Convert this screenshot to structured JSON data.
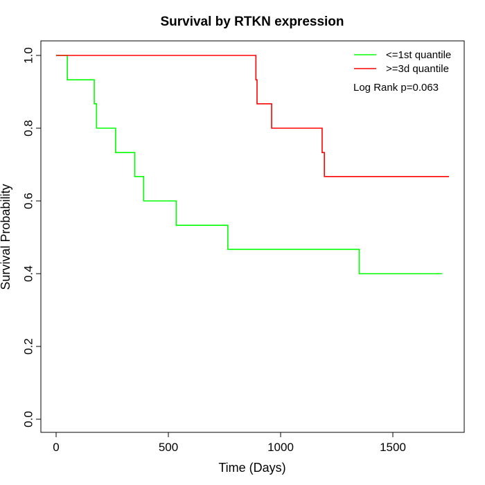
{
  "chart_data": {
    "type": "line",
    "subtype": "step",
    "title": "Survival by RTKN expression",
    "xlabel": "Time (Days)",
    "ylabel": "Survival Probability",
    "xlim": [
      0,
      1750
    ],
    "ylim": [
      0,
      1
    ],
    "xticks": [
      0,
      500,
      1000,
      1500
    ],
    "xtick_labels": [
      "0",
      "500",
      "1000",
      "1500"
    ],
    "yticks": [
      0,
      0.2,
      0.4,
      0.6,
      0.8,
      1
    ],
    "ytick_labels": [
      "0.0",
      "0.2",
      "0.4",
      "0.6",
      "0.8",
      "1.0"
    ],
    "grid": false,
    "legend_position": "top-right",
    "annotation": "Log Rank p=0.063",
    "series": [
      {
        "name": "<=1st quantile",
        "color": "#00ff00",
        "x": [
          0,
          50,
          170,
          180,
          265,
          350,
          390,
          535,
          765,
          1350,
          1720
        ],
        "y": [
          1.0,
          0.933,
          0.867,
          0.8,
          0.733,
          0.667,
          0.6,
          0.533,
          0.467,
          0.4,
          0.4
        ]
      },
      {
        "name": ">=3d quantile",
        "color": "#ff0000",
        "x": [
          0,
          890,
          895,
          960,
          1185,
          1195,
          1750
        ],
        "y": [
          1.0,
          0.933,
          0.867,
          0.8,
          0.733,
          0.667,
          0.667
        ]
      }
    ]
  }
}
